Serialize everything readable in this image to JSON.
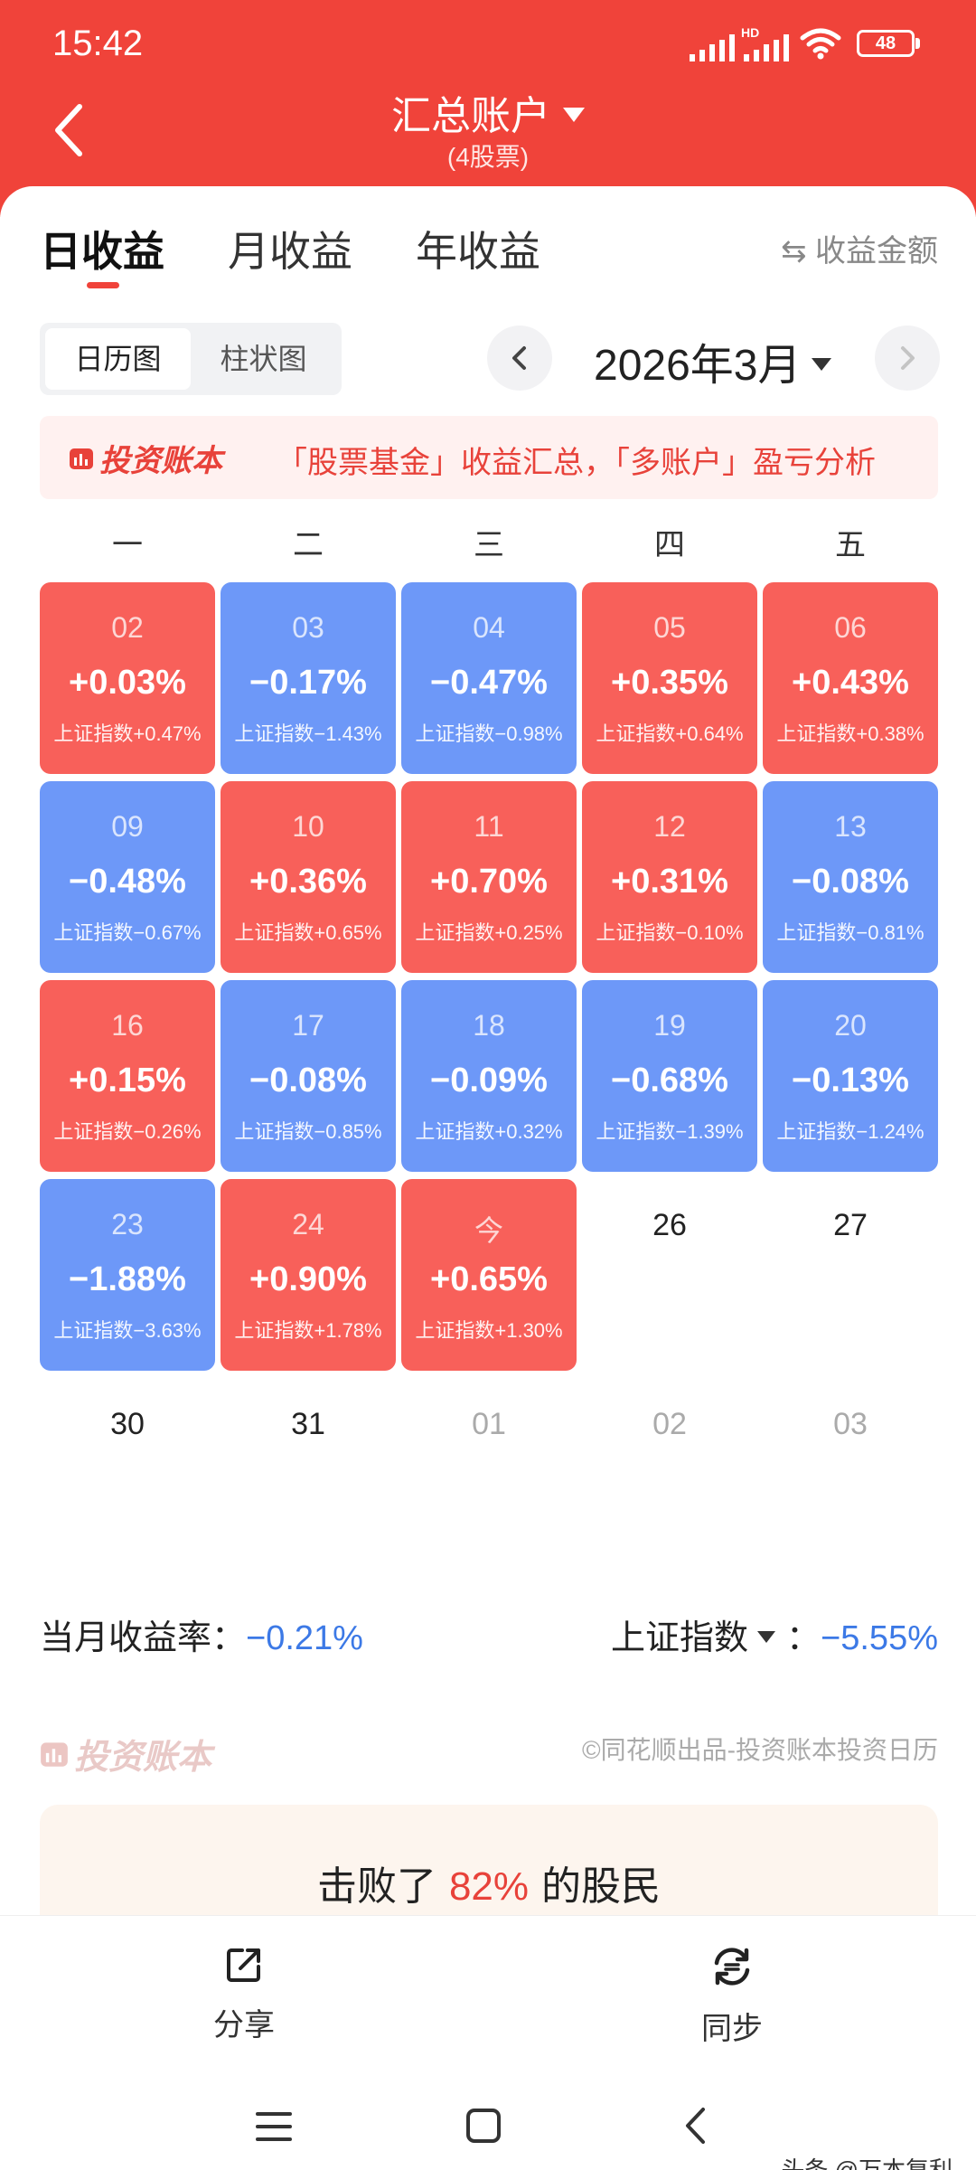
{
  "status": {
    "time": "15:42",
    "network": "HD",
    "battery": "48"
  },
  "header": {
    "title": "汇总账户",
    "subtitle": "(4股票)"
  },
  "tabs": [
    {
      "label": "日收益",
      "active": true
    },
    {
      "label": "月收益",
      "active": false
    },
    {
      "label": "年收益",
      "active": false
    }
  ],
  "amount_toggle": "⇆ 收益金额",
  "view_switch": [
    {
      "label": "日历图",
      "active": true
    },
    {
      "label": "柱状图",
      "active": false
    }
  ],
  "month": "2026年3月",
  "banner": {
    "brand": "投资账本",
    "text": "「股票基金」收益汇总，「多账户」盈亏分析"
  },
  "weekdays": [
    "一",
    "二",
    "三",
    "四",
    "五"
  ],
  "days": [
    {
      "day": "02",
      "pct": "+0.03%",
      "index": "上证指数+0.47%",
      "color": "red"
    },
    {
      "day": "03",
      "pct": "−0.17%",
      "index": "上证指数−1.43%",
      "color": "blue"
    },
    {
      "day": "04",
      "pct": "−0.47%",
      "index": "上证指数−0.98%",
      "color": "blue"
    },
    {
      "day": "05",
      "pct": "+0.35%",
      "index": "上证指数+0.64%",
      "color": "red"
    },
    {
      "day": "06",
      "pct": "+0.43%",
      "index": "上证指数+0.38%",
      "color": "red"
    },
    {
      "day": "09",
      "pct": "−0.48%",
      "index": "上证指数−0.67%",
      "color": "blue"
    },
    {
      "day": "10",
      "pct": "+0.36%",
      "index": "上证指数+0.65%",
      "color": "red"
    },
    {
      "day": "11",
      "pct": "+0.70%",
      "index": "上证指数+0.25%",
      "color": "red"
    },
    {
      "day": "12",
      "pct": "+0.31%",
      "index": "上证指数−0.10%",
      "color": "red"
    },
    {
      "day": "13",
      "pct": "−0.08%",
      "index": "上证指数−0.81%",
      "color": "blue"
    },
    {
      "day": "16",
      "pct": "+0.15%",
      "index": "上证指数−0.26%",
      "color": "red"
    },
    {
      "day": "17",
      "pct": "−0.08%",
      "index": "上证指数−0.85%",
      "color": "blue"
    },
    {
      "day": "18",
      "pct": "−0.09%",
      "index": "上证指数+0.32%",
      "color": "blue"
    },
    {
      "day": "19",
      "pct": "−0.68%",
      "index": "上证指数−1.39%",
      "color": "blue"
    },
    {
      "day": "20",
      "pct": "−0.13%",
      "index": "上证指数−1.24%",
      "color": "blue"
    },
    {
      "day": "23",
      "pct": "−1.88%",
      "index": "上证指数−3.63%",
      "color": "blue"
    },
    {
      "day": "24",
      "pct": "+0.90%",
      "index": "上证指数+1.78%",
      "color": "red"
    },
    {
      "day": "今",
      "pct": "+0.65%",
      "index": "上证指数+1.30%",
      "color": "red"
    }
  ],
  "plain_days": [
    "26",
    "27",
    "30",
    "31",
    "01",
    "02",
    "03"
  ],
  "summary": {
    "month_label": "当月收益率：",
    "month_value": "−0.21%",
    "index_label": "上证指数",
    "index_colon": "：",
    "index_value": "−5.55%"
  },
  "watermark": {
    "brand": "投资账本",
    "text": "©同花顺出品-投资账本投资日历"
  },
  "beat": {
    "prefix": "击败了",
    "value": "82%",
    "suffix": "的股民"
  },
  "bottom": {
    "share": "分享",
    "sync": "同步"
  },
  "corner_watermark": "头条 @万本复利",
  "colors": {
    "red": "#f8605a",
    "blue": "#6d98f8",
    "accent": "#f0433a"
  }
}
